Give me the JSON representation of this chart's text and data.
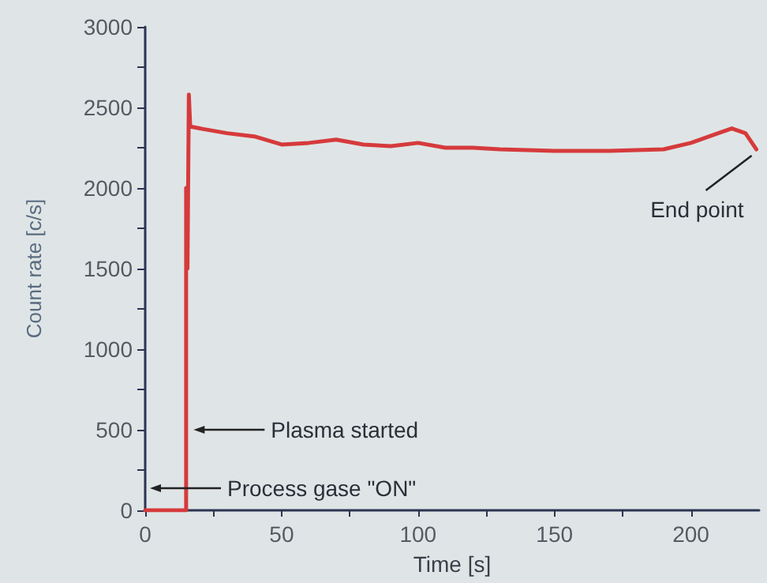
{
  "chart_data": {
    "type": "line",
    "xlabel": "Time [s]",
    "ylabel": "Count rate [c/s]",
    "xlim": [
      0,
      225
    ],
    "xticks": [
      0,
      {
        "value": 25,
        "label": null
      },
      50,
      {
        "value": 75,
        "label": null
      },
      100,
      {
        "value": 125,
        "label": null
      },
      150,
      {
        "value": 175,
        "label": null
      },
      200
    ],
    "ylim": [
      0,
      3000
    ],
    "yticks": [
      0,
      {
        "value": 250,
        "label": null
      },
      500,
      {
        "value": 750,
        "label": null
      },
      1000,
      {
        "value": 1250,
        "label": null
      },
      1500,
      {
        "value": 1750,
        "label": null
      },
      2000,
      {
        "value": 2250,
        "label": null
      },
      2500,
      {
        "value": 2750,
        "label": null
      },
      3000
    ],
    "grid": false,
    "marker": "none",
    "line_style": "solid",
    "series": [
      {
        "color": "#d63a3c",
        "x": [
          0,
          15,
          15,
          15.5,
          15.5,
          16,
          16.5,
          17,
          20,
          30,
          40,
          50,
          60,
          70,
          80,
          90,
          100,
          110,
          120,
          130,
          150,
          170,
          190,
          200,
          210,
          215,
          220,
          224
        ],
        "values": [
          0,
          0,
          2000,
          2000,
          1500,
          2580,
          2380,
          2380,
          2370,
          2340,
          2320,
          2270,
          2280,
          2300,
          2270,
          2260,
          2280,
          2250,
          2250,
          2240,
          2230,
          2230,
          2240,
          2280,
          2340,
          2370,
          2340,
          2240
        ]
      }
    ],
    "annotations": [
      {
        "text": "Plasma started",
        "x": 16,
        "y": 500
      },
      "Process gase \"ON\"",
      {
        "text": "End point",
        "x": 224,
        "y": 2240
      }
    ]
  }
}
